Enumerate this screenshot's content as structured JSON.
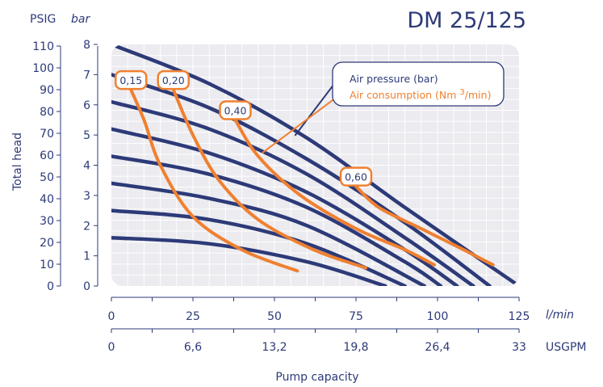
{
  "chart_data": {
    "type": "line",
    "title": "DM 25/125",
    "y_unit_left": "PSIG",
    "y_unit_right": "bar",
    "ylabel": "Total head",
    "xlabel": "Pump capacity",
    "x_unit_primary": "l/min",
    "x_unit_secondary": "USGPM",
    "x_ticks": [
      "0",
      "25",
      "50",
      "75",
      "100",
      "125"
    ],
    "x_ticks_secondary": [
      "0",
      "6,6",
      "13,2",
      "19,8",
      "26,4",
      "33"
    ],
    "y_ticks_psig": [
      "0",
      "10",
      "20",
      "30",
      "40",
      "50",
      "60",
      "70",
      "80",
      "90",
      "100",
      "110"
    ],
    "y_ticks_bar": [
      "0",
      "1",
      "2",
      "3",
      "4",
      "5",
      "6",
      "7",
      "8"
    ],
    "xlim": [
      0,
      125
    ],
    "ylim_bar": [
      0,
      8
    ],
    "legend": {
      "air_pressure": "Air pressure (bar)",
      "air_consumption_prefix": "Air consumption (Nm ",
      "air_consumption_exp": "3",
      "air_consumption_suffix": "/min)",
      "placement": "top-right"
    },
    "colors": {
      "air_pressure": "#2d3a78",
      "air_consumption": "#f08030",
      "plot_bg": "#ebebf0",
      "grid": "#ffffff"
    },
    "air_pressure_curves": [
      {
        "values": [
          [
            0,
            8.0
          ],
          [
            30,
            6.7
          ],
          [
            60,
            4.9
          ],
          [
            90,
            2.6
          ],
          [
            125,
            0
          ]
        ]
      },
      {
        "values": [
          [
            0,
            7.0
          ],
          [
            30,
            5.9
          ],
          [
            60,
            4.2
          ],
          [
            90,
            2.1
          ],
          [
            116,
            0
          ]
        ]
      },
      {
        "values": [
          [
            0,
            6.1
          ],
          [
            30,
            5.2
          ],
          [
            60,
            3.7
          ],
          [
            90,
            1.6
          ],
          [
            111,
            0
          ]
        ]
      },
      {
        "values": [
          [
            0,
            5.2
          ],
          [
            30,
            4.4
          ],
          [
            60,
            3.1
          ],
          [
            90,
            1.2
          ],
          [
            106,
            0
          ]
        ]
      },
      {
        "values": [
          [
            0,
            4.3
          ],
          [
            30,
            3.7
          ],
          [
            60,
            2.6
          ],
          [
            90,
            0.8
          ],
          [
            101,
            0
          ]
        ]
      },
      {
        "values": [
          [
            0,
            3.4
          ],
          [
            30,
            2.9
          ],
          [
            60,
            2.0
          ],
          [
            96,
            0
          ]
        ]
      },
      {
        "values": [
          [
            0,
            2.5
          ],
          [
            30,
            2.2
          ],
          [
            60,
            1.4
          ],
          [
            90,
            0
          ]
        ]
      },
      {
        "values": [
          [
            0,
            1.6
          ],
          [
            30,
            1.4
          ],
          [
            60,
            0.8
          ],
          [
            84,
            0
          ]
        ]
      }
    ],
    "air_consumption_curves": [
      {
        "name": "0,15",
        "values": [
          [
            6,
            6.5
          ],
          [
            10,
            5.5
          ],
          [
            15,
            4.0
          ],
          [
            25,
            2.3
          ],
          [
            40,
            1.2
          ],
          [
            57,
            0.5
          ]
        ]
      },
      {
        "name": "0,20",
        "values": [
          [
            19,
            6.5
          ],
          [
            25,
            5.0
          ],
          [
            33,
            3.5
          ],
          [
            45,
            2.2
          ],
          [
            62,
            1.2
          ],
          [
            78,
            0.6
          ]
        ]
      },
      {
        "name": "0,40",
        "values": [
          [
            38,
            5.5
          ],
          [
            45,
            4.3
          ],
          [
            58,
            3.0
          ],
          [
            75,
            1.9
          ],
          [
            90,
            1.2
          ],
          [
            99,
            0.7
          ]
        ]
      },
      {
        "name": "0,60",
        "values": [
          [
            75,
            3.3
          ],
          [
            82,
            2.6
          ],
          [
            95,
            1.9
          ],
          [
            108,
            1.2
          ],
          [
            117,
            0.7
          ]
        ]
      }
    ]
  }
}
